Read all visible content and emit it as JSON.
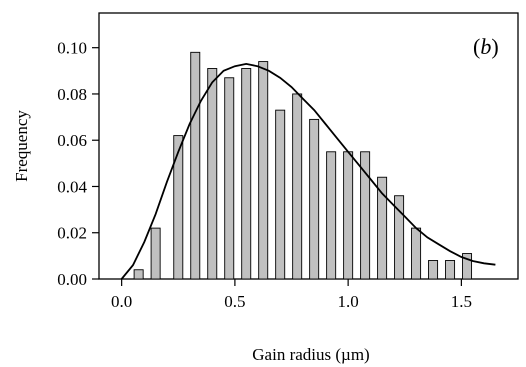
{
  "chart_data": {
    "type": "bar",
    "panel_label_open": "(",
    "panel_label_letter": "b",
    "panel_label_close": ")",
    "xlabel": "Gain radius (µm)",
    "ylabel": "Frequency",
    "xlim": [
      -0.1,
      1.75
    ],
    "ylim": [
      0.0,
      0.115
    ],
    "xticks": [
      0.0,
      0.5,
      1.0,
      1.5
    ],
    "xtick_labels": [
      "0.0",
      "0.5",
      "1.0",
      "1.5"
    ],
    "yticks": [
      0.0,
      0.02,
      0.04,
      0.06,
      0.08,
      0.1
    ],
    "ytick_labels": [
      "0.00",
      "0.02",
      "0.04",
      "0.06",
      "0.08",
      "0.10"
    ],
    "bar_width": 0.04,
    "bar_color": "#c0c0c0",
    "bars": [
      {
        "x": 0.075,
        "y": 0.004
      },
      {
        "x": 0.15,
        "y": 0.022
      },
      {
        "x": 0.25,
        "y": 0.062
      },
      {
        "x": 0.325,
        "y": 0.098
      },
      {
        "x": 0.4,
        "y": 0.091
      },
      {
        "x": 0.475,
        "y": 0.087
      },
      {
        "x": 0.55,
        "y": 0.091
      },
      {
        "x": 0.625,
        "y": 0.094
      },
      {
        "x": 0.7,
        "y": 0.073
      },
      {
        "x": 0.775,
        "y": 0.08
      },
      {
        "x": 0.85,
        "y": 0.069
      },
      {
        "x": 0.925,
        "y": 0.055
      },
      {
        "x": 1.0,
        "y": 0.055
      },
      {
        "x": 1.075,
        "y": 0.055
      },
      {
        "x": 1.15,
        "y": 0.044
      },
      {
        "x": 1.225,
        "y": 0.036
      },
      {
        "x": 1.3,
        "y": 0.022
      },
      {
        "x": 1.375,
        "y": 0.008
      },
      {
        "x": 1.45,
        "y": 0.008
      },
      {
        "x": 1.525,
        "y": 0.011
      }
    ],
    "fit_curve": [
      [
        0.0,
        0.0
      ],
      [
        0.05,
        0.006
      ],
      [
        0.1,
        0.016
      ],
      [
        0.15,
        0.028
      ],
      [
        0.2,
        0.042
      ],
      [
        0.25,
        0.055
      ],
      [
        0.3,
        0.067
      ],
      [
        0.35,
        0.077
      ],
      [
        0.4,
        0.085
      ],
      [
        0.45,
        0.09
      ],
      [
        0.5,
        0.092
      ],
      [
        0.55,
        0.093
      ],
      [
        0.6,
        0.092
      ],
      [
        0.65,
        0.09
      ],
      [
        0.7,
        0.087
      ],
      [
        0.75,
        0.083
      ],
      [
        0.8,
        0.078
      ],
      [
        0.85,
        0.073
      ],
      [
        0.9,
        0.067
      ],
      [
        0.95,
        0.061
      ],
      [
        1.0,
        0.055
      ],
      [
        1.05,
        0.049
      ],
      [
        1.1,
        0.043
      ],
      [
        1.15,
        0.037
      ],
      [
        1.2,
        0.032
      ],
      [
        1.25,
        0.027
      ],
      [
        1.3,
        0.022
      ],
      [
        1.35,
        0.018
      ],
      [
        1.4,
        0.015
      ],
      [
        1.45,
        0.012
      ],
      [
        1.5,
        0.0095
      ],
      [
        1.55,
        0.0078
      ],
      [
        1.6,
        0.0068
      ],
      [
        1.65,
        0.0062
      ]
    ]
  }
}
